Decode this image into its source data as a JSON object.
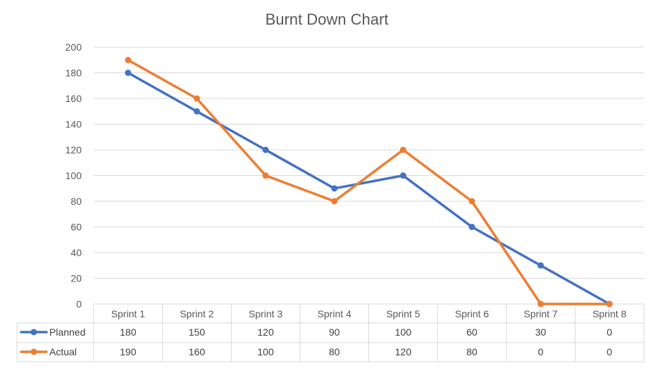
{
  "chart_data": {
    "type": "line",
    "title": "Burnt Down Chart",
    "xlabel": "",
    "ylabel": "",
    "categories": [
      "Sprint 1",
      "Sprint 2",
      "Sprint 3",
      "Sprint 4",
      "Sprint 5",
      "Sprint 6",
      "Sprint 7",
      "Sprint 8"
    ],
    "ylim": [
      0,
      200
    ],
    "yticks": [
      0,
      20,
      40,
      60,
      80,
      100,
      120,
      140,
      160,
      180,
      200
    ],
    "grid": true,
    "legend": "data-table-left",
    "series": [
      {
        "name": "Planned",
        "color": "#4472c4",
        "values": [
          180,
          150,
          120,
          90,
          100,
          60,
          30,
          0
        ]
      },
      {
        "name": "Actual",
        "color": "#ed7d31",
        "values": [
          190,
          160,
          100,
          80,
          120,
          80,
          0,
          0
        ]
      }
    ]
  }
}
